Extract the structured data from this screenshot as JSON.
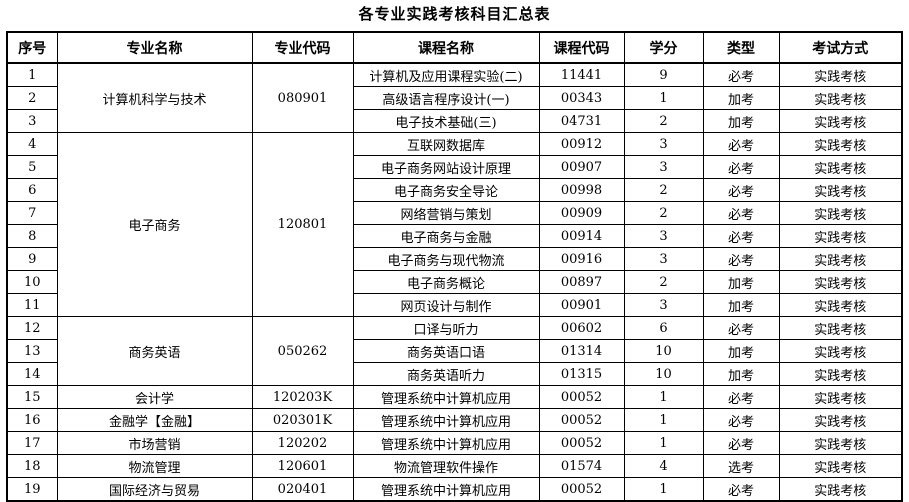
{
  "title": "各专业实践考核科目汇总表",
  "colors": {
    "background": "#ffffff",
    "border": "#000000",
    "text": "#000000"
  },
  "table": {
    "headers": [
      "序号",
      "专业名称",
      "专业代码",
      "课程名称",
      "课程代码",
      "学分",
      "类型",
      "考试方式"
    ],
    "rows": [
      {
        "no": "1",
        "major": "计算机科学与技术",
        "major_code": "080901",
        "major_span": 3,
        "course": "计算机及应用课程实验(二)",
        "course_code": "11441",
        "credits": "9",
        "type": "必考",
        "method": "实践考核"
      },
      {
        "no": "2",
        "course": "高级语言程序设计(一)",
        "course_code": "00343",
        "credits": "1",
        "type": "加考",
        "method": "实践考核"
      },
      {
        "no": "3",
        "course": "电子技术基础(三)",
        "course_code": "04731",
        "credits": "2",
        "type": "加考",
        "method": "实践考核"
      },
      {
        "no": "4",
        "major": "电子商务",
        "major_code": "120801",
        "major_span": 8,
        "course": "互联网数据库",
        "course_code": "00912",
        "credits": "3",
        "type": "必考",
        "method": "实践考核"
      },
      {
        "no": "5",
        "course": "电子商务网站设计原理",
        "course_code": "00907",
        "credits": "3",
        "type": "必考",
        "method": "实践考核"
      },
      {
        "no": "6",
        "course": "电子商务安全导论",
        "course_code": "00998",
        "credits": "2",
        "type": "必考",
        "method": "实践考核"
      },
      {
        "no": "7",
        "course": "网络营销与策划",
        "course_code": "00909",
        "credits": "2",
        "type": "必考",
        "method": "实践考核"
      },
      {
        "no": "8",
        "course": "电子商务与金融",
        "course_code": "00914",
        "credits": "3",
        "type": "必考",
        "method": "实践考核"
      },
      {
        "no": "9",
        "course": "电子商务与现代物流",
        "course_code": "00916",
        "credits": "3",
        "type": "必考",
        "method": "实践考核"
      },
      {
        "no": "10",
        "course": "电子商务概论",
        "course_code": "00897",
        "credits": "2",
        "type": "加考",
        "method": "实践考核"
      },
      {
        "no": "11",
        "course": "网页设计与制作",
        "course_code": "00901",
        "credits": "3",
        "type": "加考",
        "method": "实践考核"
      },
      {
        "no": "12",
        "major": "商务英语",
        "major_code": "050262",
        "major_span": 3,
        "course": "口译与听力",
        "course_code": "00602",
        "credits": "6",
        "type": "必考",
        "method": "实践考核"
      },
      {
        "no": "13",
        "course": "商务英语口语",
        "course_code": "01314",
        "credits": "10",
        "type": "加考",
        "method": "实践考核"
      },
      {
        "no": "14",
        "course": "商务英语听力",
        "course_code": "01315",
        "credits": "10",
        "type": "加考",
        "method": "实践考核"
      },
      {
        "no": "15",
        "major": "会计学",
        "major_code": "120203K",
        "major_span": 1,
        "course": "管理系统中计算机应用",
        "course_code": "00052",
        "credits": "1",
        "type": "必考",
        "method": "实践考核"
      },
      {
        "no": "16",
        "major": "金融学【金融】",
        "major_code": "020301K",
        "major_span": 1,
        "course": "管理系统中计算机应用",
        "course_code": "00052",
        "credits": "1",
        "type": "必考",
        "method": "实践考核"
      },
      {
        "no": "17",
        "major": "市场营销",
        "major_code": "120202",
        "major_span": 1,
        "course": "管理系统中计算机应用",
        "course_code": "00052",
        "credits": "1",
        "type": "必考",
        "method": "实践考核"
      },
      {
        "no": "18",
        "major": "物流管理",
        "major_code": "120601",
        "major_span": 1,
        "course": "物流管理软件操作",
        "course_code": "01574",
        "credits": "4",
        "type": "选考",
        "method": "实践考核"
      },
      {
        "no": "19",
        "major": "国际经济与贸易",
        "major_code": "020401",
        "major_span": 1,
        "course": "管理系统中计算机应用",
        "course_code": "00052",
        "credits": "1",
        "type": "必考",
        "method": "实践考核"
      }
    ]
  }
}
